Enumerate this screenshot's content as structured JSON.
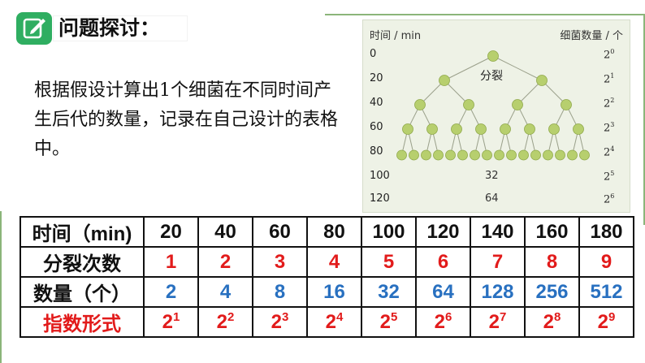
{
  "title": "问题探讨：",
  "description": "根据假设计算出1个细菌在不同时间产生后代的数量，记录在自己设计的表格中。",
  "figure": {
    "time_header": "时间 / min",
    "count_header": "细菌数量 / 个",
    "split_label": "分裂",
    "rows": [
      {
        "time": "0",
        "base": "2",
        "exp": "0",
        "count": ""
      },
      {
        "time": "20",
        "base": "2",
        "exp": "1",
        "count": ""
      },
      {
        "time": "40",
        "base": "2",
        "exp": "2",
        "count": ""
      },
      {
        "time": "60",
        "base": "2",
        "exp": "3",
        "count": ""
      },
      {
        "time": "80",
        "base": "2",
        "exp": "4",
        "count": ""
      },
      {
        "time": "100",
        "base": "2",
        "exp": "5",
        "count": "32"
      },
      {
        "time": "120",
        "base": "2",
        "exp": "6",
        "count": "64"
      }
    ],
    "colors": {
      "node": "#b7cf6e",
      "background": "#eef2e6",
      "line": "#9aa08a"
    }
  },
  "table": {
    "headers": [
      "时间（min)",
      "分裂次数",
      "数量（个）",
      "指数形式"
    ],
    "times": [
      "20",
      "40",
      "60",
      "80",
      "100",
      "120",
      "140",
      "160",
      "180"
    ],
    "splits": [
      "1",
      "2",
      "3",
      "4",
      "5",
      "6",
      "7",
      "8",
      "9"
    ],
    "quantities": [
      "2",
      "4",
      "8",
      "16",
      "32",
      "64",
      "128",
      "256",
      "512"
    ],
    "exp_base": "2",
    "exponents": [
      "1",
      "2",
      "3",
      "4",
      "5",
      "6",
      "7",
      "8",
      "9"
    ],
    "colors": {
      "red": "#e21b1b",
      "blue": "#2870c0",
      "accent": "#2fae61"
    }
  }
}
